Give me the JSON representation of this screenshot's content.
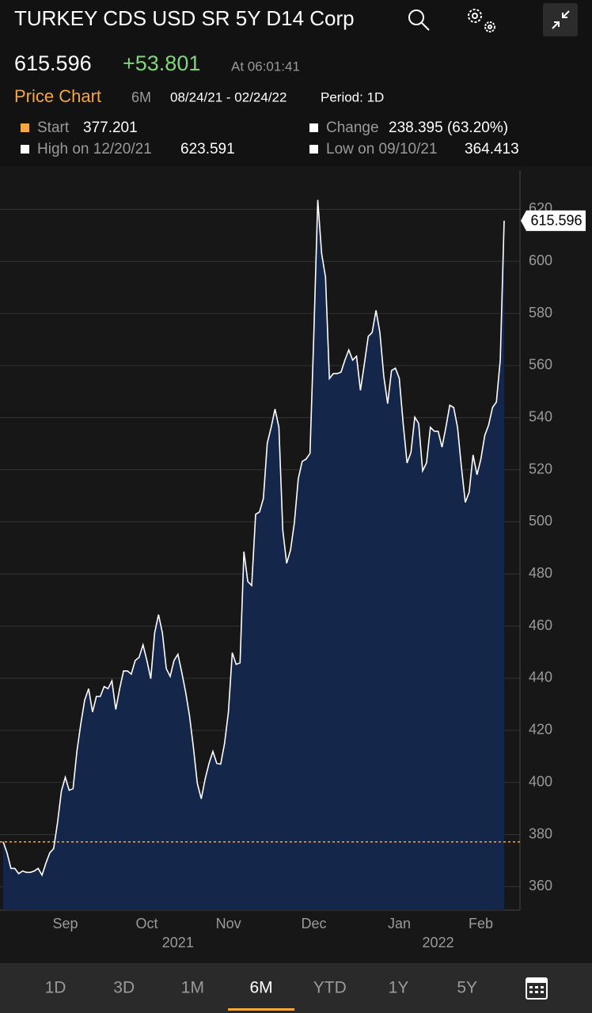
{
  "header": {
    "title": "TURKEY CDS USD SR 5Y D14 Corp",
    "price": "615.596",
    "change": "+53.801",
    "time": "At 06:01:41",
    "chart_label": "Price Chart",
    "range": "6M",
    "dates": "08/24/21 - 02/24/22",
    "period": "Period: 1D"
  },
  "stats": {
    "start_label": "Start",
    "start_value": "377.201",
    "change_label": "Change",
    "change_value": "238.395 (63.20%)",
    "high_label": "High on 12/20/21",
    "high_value": "623.591",
    "low_label": "Low on 09/10/21",
    "low_value": "364.413"
  },
  "chart_data": {
    "type": "line",
    "color": "#ffffff",
    "fill": "#14264a",
    "grid": true,
    "values": [
      377.201,
      373,
      367,
      367,
      365,
      366,
      365.5,
      365.5,
      366,
      367,
      364.413,
      369,
      373,
      374.6,
      384.6,
      396.7,
      402,
      397,
      397.6,
      412,
      422.5,
      431.6,
      436,
      427,
      433,
      433,
      436.8,
      436,
      439,
      428,
      436,
      442.8,
      442.8,
      441.6,
      446.8,
      448,
      452.8,
      446.8,
      439.8,
      457.4,
      464.4,
      457.4,
      443.7,
      440.7,
      446.8,
      449.2,
      442.2,
      434.6,
      425.5,
      413.4,
      399.7,
      393.7,
      401.3,
      407.3,
      411.9,
      407.3,
      407,
      414.9,
      427,
      449.8,
      445.3,
      445.9,
      488.6,
      477.1,
      475.6,
      502.9,
      503.8,
      509,
      530.2,
      536.3,
      543.3,
      536.3,
      496.8,
      484.1,
      489.2,
      499.9,
      516.6,
      523.2,
      524.1,
      526.3,
      572.7,
      623.591,
      603,
      593.9,
      555,
      556.9,
      556.9,
      557.5,
      562.1,
      566,
      562.1,
      563.6,
      550.5,
      560.5,
      571.2,
      572.7,
      581.2,
      572.7,
      556,
      545.4,
      558.1,
      559,
      555.1,
      537.8,
      522.6,
      526.6,
      540.2,
      537.8,
      519.6,
      522.6,
      536.3,
      534.8,
      534.8,
      528.7,
      536.3,
      544.8,
      543.9,
      536.3,
      521.1,
      507.5,
      511.4,
      525.7,
      518.1,
      524.1,
      533.2,
      537.2,
      543.9,
      546,
      562.1,
      615.596
    ],
    "xlim": [
      0,
      129
    ],
    "ylim": [
      351,
      635
    ],
    "yticks": [
      360,
      380,
      400,
      420,
      440,
      460,
      480,
      500,
      520,
      540,
      560,
      580,
      600,
      620
    ],
    "xticks": [
      {
        "value": 16,
        "label": "Sep"
      },
      {
        "value": 37,
        "label": "Oct"
      },
      {
        "value": 58,
        "label": "Nov"
      },
      {
        "value": 80,
        "label": "Dec"
      },
      {
        "value": 102,
        "label": "Jan"
      },
      {
        "value": 123,
        "label": "Feb"
      }
    ],
    "year_ticks": [
      {
        "value": 45,
        "label": "2021"
      },
      {
        "value": 112,
        "label": "2022"
      }
    ]
  },
  "tabs": [
    "1D",
    "3D",
    "1M",
    "6M",
    "YTD",
    "1Y",
    "5Y"
  ],
  "selected_tab": "6M"
}
